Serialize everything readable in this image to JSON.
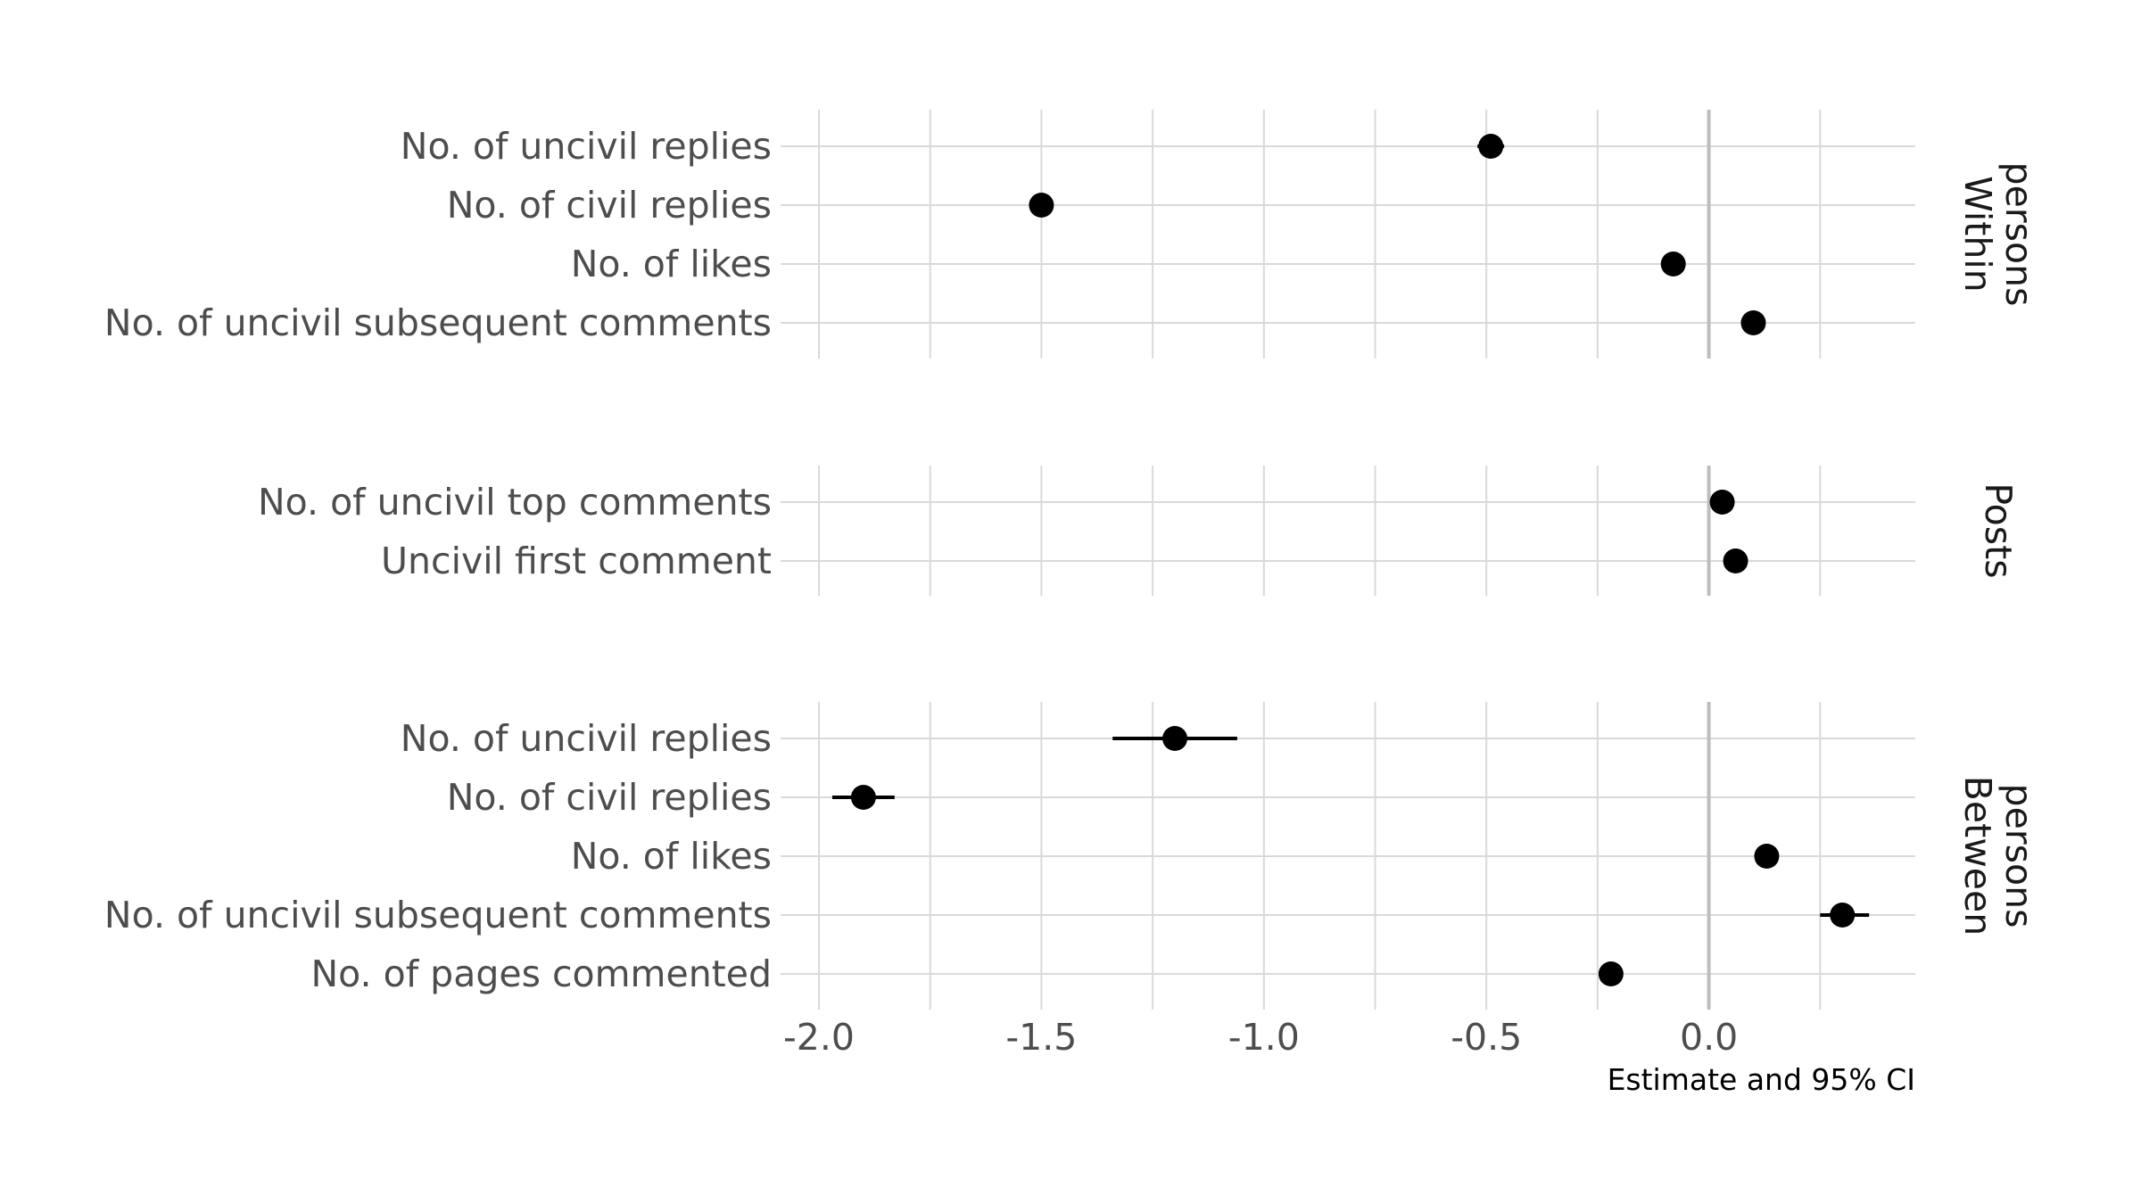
{
  "chart_data": {
    "type": "scatter",
    "subtype": "dot-whisker (coefficient plot), faceted",
    "xlabel": "Estimate and 95% CI",
    "xlim": [
      -2.1,
      0.475
    ],
    "xticks": [
      -2.0,
      -1.5,
      -1.0,
      -0.5,
      0.0
    ],
    "xtick_labels": [
      "-2.0",
      "-1.5",
      "-1.0",
      "-0.5",
      "0.0"
    ],
    "grid": true,
    "reference_line": 0.0,
    "point_color": "#000000",
    "grid_color": "#d9d9d9",
    "zero_line_color": "#bdbdbd",
    "facets": [
      {
        "strip_label": [
          "Within",
          "persons"
        ],
        "items": [
          {
            "label": "No. of uncivil replies",
            "estimate": -0.49,
            "ci": [
              -0.52,
              -0.46
            ]
          },
          {
            "label": "No. of civil replies",
            "estimate": -1.5,
            "ci": [
              -1.51,
              -1.49
            ]
          },
          {
            "label": "No. of likes",
            "estimate": -0.08,
            "ci": [
              -0.09,
              -0.07
            ]
          },
          {
            "label": "No. of uncivil subsequent comments",
            "estimate": 0.1,
            "ci": [
              0.09,
              0.11
            ]
          }
        ]
      },
      {
        "strip_label": [
          "Posts"
        ],
        "items": [
          {
            "label": "No. of uncivil top comments",
            "estimate": 0.03,
            "ci": [
              0.02,
              0.04
            ]
          },
          {
            "label": "Uncivil first comment",
            "estimate": 0.06,
            "ci": [
              0.05,
              0.07
            ]
          }
        ]
      },
      {
        "strip_label": [
          "Between",
          "persons"
        ],
        "items": [
          {
            "label": "No. of uncivil replies",
            "estimate": -1.2,
            "ci": [
              -1.34,
              -1.06
            ]
          },
          {
            "label": "No. of civil replies",
            "estimate": -1.9,
            "ci": [
              -1.97,
              -1.83
            ]
          },
          {
            "label": "No. of likes",
            "estimate": 0.13,
            "ci": [
              0.11,
              0.15
            ]
          },
          {
            "label": "No. of uncivil subsequent comments",
            "estimate": 0.3,
            "ci": [
              0.25,
              0.36
            ]
          },
          {
            "label": "No. of pages commented",
            "estimate": -0.22,
            "ci": [
              -0.24,
              -0.2
            ]
          }
        ]
      }
    ]
  }
}
